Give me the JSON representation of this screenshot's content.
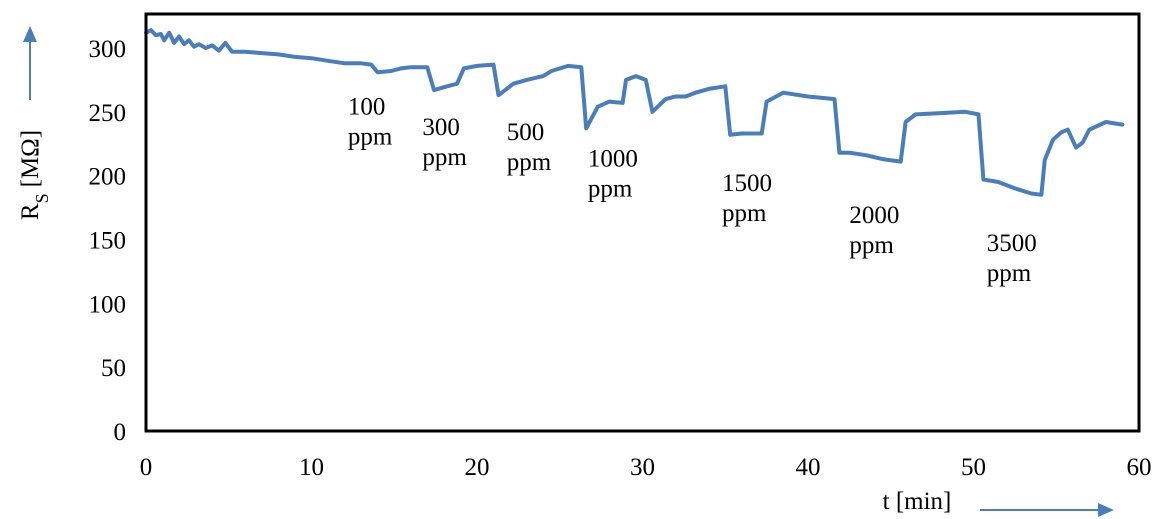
{
  "chart_data": {
    "type": "line",
    "title": "",
    "xlabel": "t [min]",
    "ylabel_main": "R",
    "ylabel_sub": "S",
    "ylabel_unit": "[MΩ]",
    "xlim": [
      0,
      60
    ],
    "ylim": [
      0,
      320
    ],
    "x_ticks": [
      0,
      10,
      20,
      30,
      40,
      50,
      60
    ],
    "y_ticks": [
      0,
      50,
      100,
      150,
      200,
      250,
      300
    ],
    "grid": false,
    "legend": "none",
    "series": [
      {
        "color": "#4a7ebb",
        "points": [
          [
            0,
            312
          ],
          [
            0.3,
            314
          ],
          [
            0.6,
            310
          ],
          [
            0.9,
            311
          ],
          [
            1.1,
            306
          ],
          [
            1.4,
            312
          ],
          [
            1.7,
            304
          ],
          [
            2.0,
            309
          ],
          [
            2.3,
            303
          ],
          [
            2.6,
            306
          ],
          [
            2.9,
            301
          ],
          [
            3.2,
            303
          ],
          [
            3.6,
            300
          ],
          [
            4.0,
            302
          ],
          [
            4.4,
            298
          ],
          [
            4.8,
            304
          ],
          [
            5.2,
            297
          ],
          [
            6,
            297
          ],
          [
            7,
            296
          ],
          [
            8,
            295
          ],
          [
            9,
            293
          ],
          [
            10,
            292
          ],
          [
            11,
            290
          ],
          [
            12,
            288
          ],
          [
            13,
            288
          ],
          [
            13.6,
            287
          ],
          [
            14.0,
            281
          ],
          [
            14.8,
            282
          ],
          [
            15.4,
            284
          ],
          [
            16.0,
            285
          ],
          [
            17.0,
            285
          ],
          [
            17.4,
            267
          ],
          [
            18.2,
            270
          ],
          [
            18.8,
            272
          ],
          [
            19.2,
            284
          ],
          [
            20,
            286
          ],
          [
            21.0,
            287
          ],
          [
            21.3,
            263
          ],
          [
            22.2,
            272
          ],
          [
            23,
            275
          ],
          [
            24,
            278
          ],
          [
            24.5,
            282
          ],
          [
            25.5,
            286
          ],
          [
            26.3,
            285
          ],
          [
            26.6,
            237
          ],
          [
            27.3,
            254
          ],
          [
            28.0,
            258
          ],
          [
            28.8,
            257
          ],
          [
            29.0,
            275
          ],
          [
            29.6,
            278
          ],
          [
            30.2,
            275
          ],
          [
            30.6,
            250
          ],
          [
            31.4,
            260
          ],
          [
            32.0,
            262
          ],
          [
            32.6,
            262
          ],
          [
            33.2,
            265
          ],
          [
            34.0,
            268
          ],
          [
            35.0,
            270
          ],
          [
            35.3,
            232
          ],
          [
            36.0,
            233
          ],
          [
            37.2,
            233
          ],
          [
            37.5,
            258
          ],
          [
            38.5,
            265
          ],
          [
            40,
            262
          ],
          [
            41.6,
            260
          ],
          [
            41.9,
            218
          ],
          [
            42.5,
            218
          ],
          [
            43.5,
            216
          ],
          [
            44.5,
            213
          ],
          [
            45.6,
            211
          ],
          [
            45.9,
            242
          ],
          [
            46.5,
            248
          ],
          [
            48,
            249
          ],
          [
            49.5,
            250
          ],
          [
            50.3,
            248
          ],
          [
            50.6,
            197
          ],
          [
            51.5,
            195
          ],
          [
            52.5,
            190
          ],
          [
            53.5,
            186
          ],
          [
            54.1,
            185
          ],
          [
            54.3,
            212
          ],
          [
            54.8,
            228
          ],
          [
            55.3,
            234
          ],
          [
            55.7,
            236
          ],
          [
            56.2,
            222
          ],
          [
            56.6,
            226
          ],
          [
            57.0,
            236
          ],
          [
            58,
            242
          ],
          [
            59,
            240
          ]
        ]
      }
    ],
    "annotations": [
      {
        "line1": "100",
        "line2": "ppm",
        "x": 12.2,
        "y": 248
      },
      {
        "line1": "300",
        "line2": "ppm",
        "x": 16.7,
        "y": 232
      },
      {
        "line1": "500",
        "line2": "ppm",
        "x": 21.8,
        "y": 228
      },
      {
        "line1": "1000",
        "line2": "ppm",
        "x": 26.7,
        "y": 207
      },
      {
        "line1": "1500",
        "line2": "ppm",
        "x": 34.8,
        "y": 188
      },
      {
        "line1": "2000",
        "line2": "ppm",
        "x": 42.5,
        "y": 163
      },
      {
        "line1": "3500",
        "line2": "ppm",
        "x": 50.8,
        "y": 141
      }
    ]
  }
}
